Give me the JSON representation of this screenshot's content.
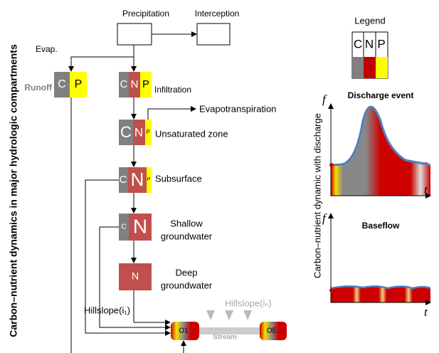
{
  "left_title": "Carbon–nutrient dynamics in major hydrologic compartments",
  "right_title": "Carbon–nutrient dynamic with discharge",
  "flow": {
    "precipitation": "Precipitation",
    "interception": "Interception",
    "evap": "Evap.",
    "evapotranspiration": "Evapotranspiration"
  },
  "compartments": [
    {
      "label": "Runoff",
      "letters": [
        "C",
        "P"
      ]
    },
    {
      "label": "Infiltration",
      "letters": [
        "C",
        "N",
        "P"
      ]
    },
    {
      "label": "Unsaturated zone",
      "letters": [
        "C",
        "N",
        "P"
      ]
    },
    {
      "label": "Subsurface",
      "letters": [
        "C",
        "N",
        "P"
      ]
    },
    {
      "label_lines": [
        "Shallow",
        "groundwater"
      ],
      "letters": [
        "C",
        "N"
      ]
    },
    {
      "label_lines": [
        "Deep",
        "groundwater"
      ],
      "letters": [
        "N"
      ]
    }
  ],
  "stream": {
    "hillslope_first": "Hillslope(i₁)",
    "hillslope_last": "Hillslope(iₙ)",
    "label": "Stream",
    "outlets": [
      "O1",
      "OE"
    ]
  },
  "legend": {
    "title": "Legend",
    "letters": [
      "C",
      "N",
      "P"
    ]
  },
  "plots": [
    {
      "title": "Discharge event",
      "y_label": "f",
      "x_label": "t"
    },
    {
      "title": "Baseflow",
      "y_label": "f",
      "x_label": "t"
    }
  ]
}
